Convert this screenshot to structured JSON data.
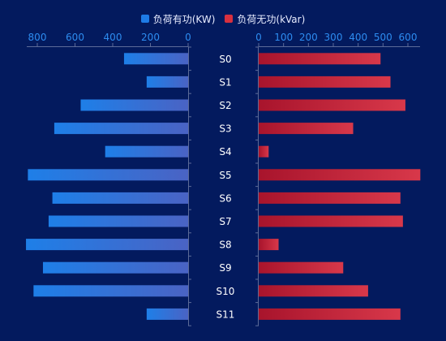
{
  "chart_data": {
    "type": "bar",
    "orientation": "horizontal-butterfly",
    "categories": [
      "S0",
      "S1",
      "S2",
      "S3",
      "S4",
      "S5",
      "S6",
      "S7",
      "S8",
      "S9",
      "S10",
      "S11"
    ],
    "series": [
      {
        "name": "负荷有功(KW)",
        "side": "left",
        "color": "#1e7be6",
        "values": [
          340,
          220,
          570,
          710,
          440,
          850,
          720,
          740,
          860,
          770,
          820,
          220
        ]
      },
      {
        "name": "负荷无功(kVar)",
        "side": "right",
        "color": "#d8303f",
        "values": [
          490,
          530,
          590,
          380,
          40,
          650,
          570,
          580,
          80,
          340,
          440,
          570
        ]
      }
    ],
    "left_axis": {
      "range": [
        0,
        800
      ],
      "ticks": [
        "800",
        "600",
        "400",
        "200",
        "0"
      ],
      "reversed": true
    },
    "right_axis": {
      "range": [
        0,
        600
      ],
      "ticks": [
        "0",
        "100",
        "200",
        "300",
        "400",
        "500",
        "600"
      ]
    },
    "legend_position": "top-center",
    "grid": false
  },
  "legend": {
    "items": [
      {
        "label": "负荷有功(KW)",
        "color": "#1e7be6"
      },
      {
        "label": "负荷无功(kVar)",
        "color": "#d8303f"
      }
    ]
  }
}
